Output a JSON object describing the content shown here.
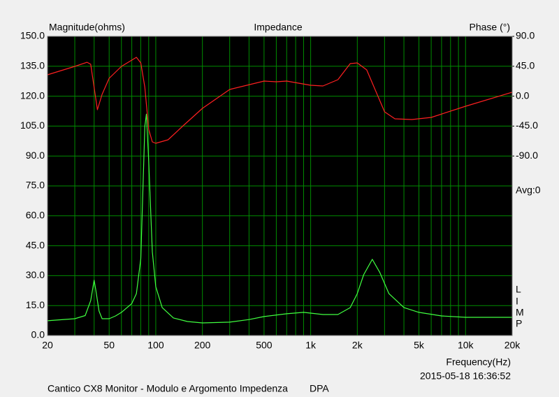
{
  "chart_data": {
    "type": "line",
    "title": "Impedance",
    "y_label": "Magnitude(ohms)",
    "y2_label": "Phase (°)",
    "x_label": "Frequency(Hz)",
    "timestamp": "2015-05-18 16:36:52",
    "footer": "Cantico CX8 Monitor - Modulo e Argomento Impedenza",
    "footer_tag": "DPA",
    "annotation": "Avg:0",
    "side_letters": [
      "L",
      "I",
      "M",
      "P"
    ],
    "xscale": "log",
    "grid": true,
    "grid_color": "#008c00",
    "background": "#000000",
    "xlim": [
      20,
      20000
    ],
    "xticks": [
      20,
      50,
      100,
      200,
      500,
      {
        "value": 1000,
        "label": "1k"
      },
      {
        "value": 2000,
        "label": "2k"
      },
      {
        "value": 5000,
        "label": "5k"
      },
      {
        "value": 10000,
        "label": "10k"
      },
      {
        "value": 20000,
        "label": "20k"
      }
    ],
    "xminor": [
      30,
      40,
      60,
      70,
      80,
      90,
      300,
      400,
      600,
      700,
      800,
      900,
      3000,
      4000,
      6000,
      7000,
      8000,
      9000
    ],
    "ylim": [
      0,
      150
    ],
    "yticks": [
      {
        "value": 0,
        "label": "0.0"
      },
      {
        "value": 15,
        "label": "15.0"
      },
      {
        "value": 30,
        "label": "30.0"
      },
      {
        "value": 45,
        "label": "45.0"
      },
      {
        "value": 60,
        "label": "60.0"
      },
      {
        "value": 75,
        "label": "75.0"
      },
      {
        "value": 90,
        "label": "90.0"
      },
      {
        "value": 105,
        "label": "105.0"
      },
      {
        "value": 120,
        "label": "120.0"
      },
      {
        "value": 135,
        "label": "135.0"
      },
      {
        "value": 150,
        "label": "150.0"
      }
    ],
    "y2lim": [
      -360,
      90
    ],
    "y2ticks": [
      {
        "value": 90,
        "label": "90.0"
      },
      {
        "value": 45,
        "label": "45.0"
      },
      {
        "value": 0,
        "label": "0.0"
      },
      {
        "value": -45,
        "label": "-45.0"
      },
      {
        "value": -90,
        "label": "-90.0"
      }
    ],
    "series": [
      {
        "name": "Magnitude",
        "color": "#40ff40",
        "x": [
          20,
          30,
          35,
          38,
          40,
          41,
          43,
          45,
          50,
          55,
          60,
          70,
          75,
          80,
          85,
          87,
          90,
          95,
          100,
          110,
          130,
          160,
          200,
          300,
          400,
          500,
          700,
          900,
          1200,
          1500,
          1800,
          2000,
          2200,
          2500,
          2800,
          3200,
          4000,
          5000,
          7000,
          10000,
          20000
        ],
        "values": [
          7.4,
          8.4,
          10,
          17.5,
          27.7,
          22.8,
          12.3,
          8.4,
          8.4,
          9.8,
          11.6,
          16,
          21,
          38.5,
          105,
          111,
          87.6,
          42,
          24.5,
          14,
          8.8,
          7,
          6.3,
          6.7,
          8,
          9.5,
          10.9,
          11.6,
          10.5,
          10.5,
          14,
          21,
          30.5,
          38.2,
          31.5,
          21,
          14,
          11.6,
          9.8,
          9.1,
          9.1
        ]
      },
      {
        "name": "Phase",
        "color": "#ff2020",
        "axis": "y2",
        "x": [
          20,
          30,
          36,
          38,
          40,
          42,
          45,
          50,
          60,
          75,
          80,
          85,
          90,
          95,
          100,
          120,
          150,
          200,
          300,
          500,
          600,
          700,
          1000,
          1200,
          1500,
          1800,
          2000,
          2300,
          3000,
          3500,
          4500,
          6000,
          10000,
          20000
        ],
        "values": [
          32.2,
          44.8,
          51,
          48,
          13.3,
          -20.4,
          2.7,
          26.9,
          44.8,
          58.5,
          50,
          13.3,
          -49.8,
          -68.8,
          -70.9,
          -65.6,
          -44.6,
          -18.3,
          10.1,
          22.7,
          21.7,
          22.7,
          16.4,
          15.3,
          24.8,
          49,
          50,
          39.5,
          -23.6,
          -34.1,
          -35.1,
          -32,
          -15.1,
          6
        ]
      }
    ]
  }
}
